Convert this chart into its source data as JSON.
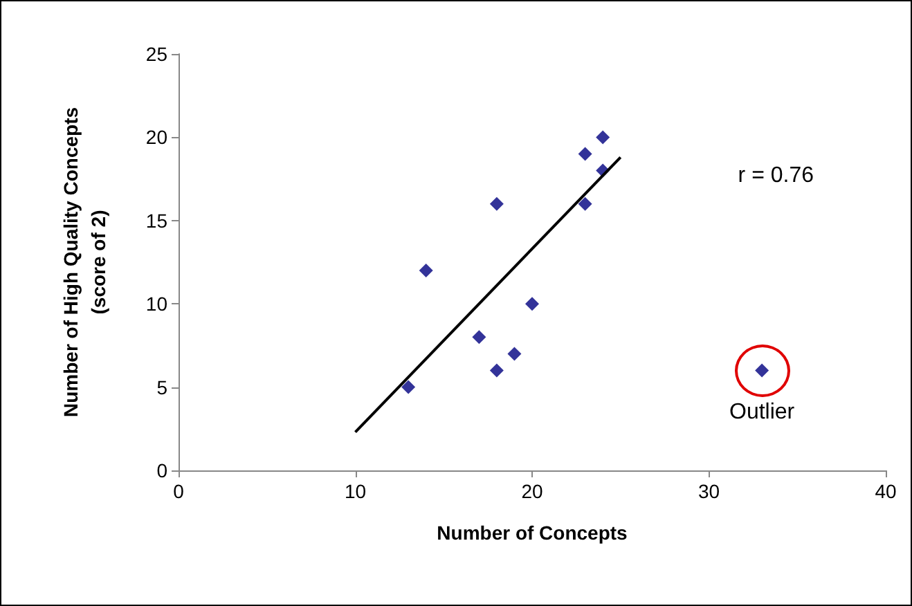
{
  "chart_data": {
    "type": "scatter",
    "xlabel": "Number of Concepts",
    "ylabel": "Number of High Quality Concepts\n(score of 2)",
    "series": [
      {
        "color": "#000080",
        "marker": "diamond",
        "x": [
          13,
          14,
          17,
          18,
          18,
          19,
          20,
          23,
          23,
          24,
          24,
          33
        ],
        "values": [
          5,
          12,
          8,
          6,
          16,
          7,
          10,
          19,
          16,
          20,
          18,
          6
        ]
      },
      {
        "type": "line",
        "color": "#000000",
        "marker": "none",
        "x": [
          10,
          25
        ],
        "values": [
          2.3,
          18.8
        ]
      }
    ],
    "xlim": [
      0,
      40
    ],
    "xticks": [
      0,
      10,
      20,
      30,
      40
    ],
    "ylim": [
      0,
      25
    ],
    "yticks": [
      0,
      5,
      10,
      15,
      20,
      25
    ],
    "grid": false,
    "annotations": [
      "r = 0.76",
      {
        "text": "Outlier",
        "x": 33,
        "y": 6
      }
    ]
  }
}
